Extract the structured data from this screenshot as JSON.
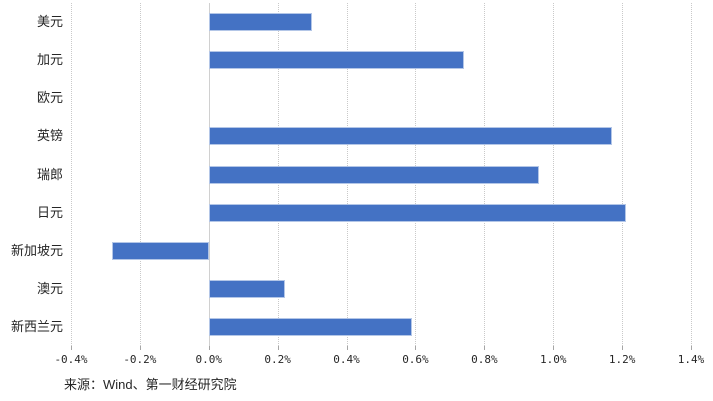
{
  "chart_data": {
    "type": "bar",
    "orientation": "horizontal",
    "title": "",
    "xlabel": "",
    "ylabel": "",
    "unit": "%",
    "categories": [
      "美元",
      "加元",
      "欧元",
      "英镑",
      "瑞郎",
      "日元",
      "新加坡元",
      "澳元",
      "新西兰元"
    ],
    "values": [
      0.3,
      0.74,
      0.0,
      1.17,
      0.96,
      1.21,
      -0.28,
      0.22,
      0.59
    ],
    "xlim": [
      -0.4,
      1.4
    ],
    "xticks": [
      -0.4,
      -0.2,
      0.0,
      0.2,
      0.4,
      0.6,
      0.8,
      1.0,
      1.2,
      1.4
    ],
    "xtick_labels": [
      "-0.4%",
      "-0.2%",
      "0.0%",
      "0.2%",
      "0.4%",
      "0.6%",
      "0.8%",
      "1.0%",
      "1.2%",
      "1.4%"
    ],
    "grid": true,
    "legend": false,
    "bar_color": "#4472c4",
    "bar_border_color": "#b3c6e7",
    "gridline_color": "#c9c9c9"
  },
  "footer": {
    "source_text": "来源：Wind、第一财经研究院"
  }
}
